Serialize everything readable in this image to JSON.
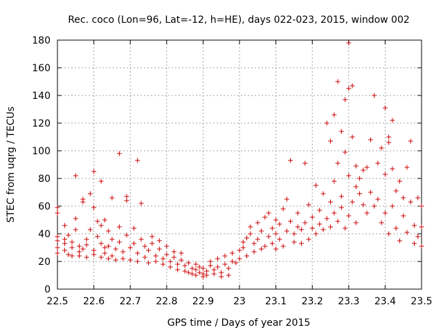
{
  "chart_data": {
    "type": "scatter",
    "title": "Rec. coco (Lon=96, Lat=-12, h=HE), days 022-023, 2015, window 002",
    "xlabel": "GPS time / Days of year 2015",
    "ylabel": "STEC from uqrg / TECUs",
    "xlim": [
      22.5,
      23.5
    ],
    "ylim": [
      0,
      180
    ],
    "x_ticks": [
      "22.5",
      "22.6",
      "22.7",
      "22.8",
      "22.9",
      "23",
      "23.1",
      "23.2",
      "23.3",
      "23.4",
      "23.5"
    ],
    "y_ticks": [
      "0",
      "20",
      "40",
      "60",
      "80",
      "100",
      "120",
      "140",
      "160",
      "180"
    ],
    "grid": true,
    "marker": "+",
    "colors": {
      "points": "#cc0000",
      "grid": "#a0a0a0",
      "axis": "#000000"
    },
    "series": [
      {
        "points": [
          [
            22.5,
            26
          ],
          [
            22.5,
            30
          ],
          [
            22.5,
            35
          ],
          [
            22.5,
            38
          ],
          [
            22.5,
            55
          ],
          [
            22.5,
            59
          ],
          [
            22.52,
            28
          ],
          [
            22.52,
            33
          ],
          [
            22.52,
            36
          ],
          [
            22.52,
            46
          ],
          [
            22.53,
            25
          ],
          [
            22.53,
            39
          ],
          [
            22.54,
            24
          ],
          [
            22.54,
            30
          ],
          [
            22.54,
            34
          ],
          [
            22.55,
            82
          ],
          [
            22.55,
            51
          ],
          [
            22.55,
            43
          ],
          [
            22.56,
            24
          ],
          [
            22.56,
            27
          ],
          [
            22.56,
            31
          ],
          [
            22.57,
            29
          ],
          [
            22.57,
            63
          ],
          [
            22.57,
            65
          ],
          [
            22.58,
            23
          ],
          [
            22.58,
            32
          ],
          [
            22.58,
            36
          ],
          [
            22.59,
            69
          ],
          [
            22.59,
            43
          ],
          [
            22.6,
            25
          ],
          [
            22.6,
            28
          ],
          [
            22.6,
            85
          ],
          [
            22.6,
            59
          ],
          [
            22.61,
            49
          ],
          [
            22.61,
            38
          ],
          [
            22.62,
            78
          ],
          [
            22.62,
            46
          ],
          [
            22.62,
            33
          ],
          [
            22.62,
            23
          ],
          [
            22.63,
            26
          ],
          [
            22.63,
            30
          ],
          [
            22.63,
            50
          ],
          [
            22.64,
            22
          ],
          [
            22.64,
            31
          ],
          [
            22.64,
            42
          ],
          [
            22.65,
            66
          ],
          [
            22.65,
            36
          ],
          [
            22.65,
            24
          ],
          [
            22.66,
            21
          ],
          [
            22.66,
            29
          ],
          [
            22.67,
            45
          ],
          [
            22.67,
            98
          ],
          [
            22.67,
            34
          ],
          [
            22.68,
            22
          ],
          [
            22.68,
            27
          ],
          [
            22.69,
            39
          ],
          [
            22.69,
            64
          ],
          [
            22.69,
            67
          ],
          [
            22.7,
            21
          ],
          [
            22.7,
            30
          ],
          [
            22.71,
            44
          ],
          [
            22.71,
            33
          ],
          [
            22.72,
            93
          ],
          [
            22.72,
            20
          ],
          [
            22.72,
            26
          ],
          [
            22.73,
            62
          ],
          [
            22.73,
            36
          ],
          [
            22.74,
            23
          ],
          [
            22.74,
            31
          ],
          [
            22.75,
            19
          ],
          [
            22.75,
            28
          ],
          [
            22.76,
            33
          ],
          [
            22.76,
            38
          ],
          [
            22.77,
            20
          ],
          [
            22.77,
            24
          ],
          [
            22.78,
            29
          ],
          [
            22.78,
            35
          ],
          [
            22.79,
            18
          ],
          [
            22.79,
            22
          ],
          [
            22.8,
            25
          ],
          [
            22.8,
            31
          ],
          [
            22.81,
            16
          ],
          [
            22.81,
            20
          ],
          [
            22.82,
            27
          ],
          [
            22.82,
            23
          ],
          [
            22.83,
            14
          ],
          [
            22.83,
            18
          ],
          [
            22.84,
            21
          ],
          [
            22.84,
            26
          ],
          [
            22.85,
            13
          ],
          [
            22.85,
            17
          ],
          [
            22.86,
            12
          ],
          [
            22.86,
            19
          ],
          [
            22.87,
            11
          ],
          [
            22.87,
            15
          ],
          [
            22.88,
            10
          ],
          [
            22.88,
            14
          ],
          [
            22.88,
            18
          ],
          [
            22.89,
            12
          ],
          [
            22.89,
            16
          ],
          [
            22.9,
            9
          ],
          [
            22.9,
            11
          ],
          [
            22.9,
            15
          ],
          [
            22.91,
            10
          ],
          [
            22.91,
            13
          ],
          [
            22.92,
            17
          ],
          [
            22.92,
            20
          ],
          [
            22.93,
            11
          ],
          [
            22.93,
            14
          ],
          [
            22.94,
            16
          ],
          [
            22.94,
            22
          ],
          [
            22.95,
            9
          ],
          [
            22.95,
            12
          ],
          [
            22.96,
            18
          ],
          [
            22.96,
            24
          ],
          [
            22.97,
            10
          ],
          [
            22.97,
            15
          ],
          [
            22.98,
            20
          ],
          [
            22.98,
            26
          ],
          [
            22.99,
            19
          ],
          [
            23.0,
            22
          ],
          [
            23.0,
            28
          ],
          [
            23.01,
            30
          ],
          [
            23.01,
            34
          ],
          [
            23.02,
            24
          ],
          [
            23.02,
            37
          ],
          [
            23.03,
            40
          ],
          [
            23.03,
            45
          ],
          [
            23.04,
            27
          ],
          [
            23.04,
            33
          ],
          [
            23.05,
            36
          ],
          [
            23.05,
            48
          ],
          [
            23.06,
            29
          ],
          [
            23.06,
            42
          ],
          [
            23.07,
            52
          ],
          [
            23.07,
            31
          ],
          [
            23.08,
            38
          ],
          [
            23.08,
            55
          ],
          [
            23.09,
            33
          ],
          [
            23.09,
            44
          ],
          [
            23.1,
            29
          ],
          [
            23.1,
            40
          ],
          [
            23.1,
            50
          ],
          [
            23.11,
            36
          ],
          [
            23.11,
            47
          ],
          [
            23.12,
            58
          ],
          [
            23.12,
            31
          ],
          [
            23.13,
            42
          ],
          [
            23.13,
            65
          ],
          [
            23.14,
            93
          ],
          [
            23.14,
            49
          ],
          [
            23.15,
            34
          ],
          [
            23.15,
            40
          ],
          [
            23.16,
            45
          ],
          [
            23.16,
            55
          ],
          [
            23.17,
            33
          ],
          [
            23.17,
            43
          ],
          [
            23.18,
            48
          ],
          [
            23.18,
            91
          ],
          [
            23.19,
            61
          ],
          [
            23.19,
            36
          ],
          [
            23.2,
            44
          ],
          [
            23.2,
            52
          ],
          [
            23.21,
            75
          ],
          [
            23.21,
            40
          ],
          [
            23.22,
            47
          ],
          [
            23.22,
            57
          ],
          [
            23.23,
            69
          ],
          [
            23.23,
            43
          ],
          [
            23.24,
            120
          ],
          [
            23.24,
            51
          ],
          [
            23.25,
            107
          ],
          [
            23.25,
            63
          ],
          [
            23.25,
            45
          ],
          [
            23.26,
            126
          ],
          [
            23.26,
            78
          ],
          [
            23.26,
            55
          ],
          [
            23.27,
            150
          ],
          [
            23.27,
            91
          ],
          [
            23.27,
            49
          ],
          [
            23.28,
            114
          ],
          [
            23.28,
            67
          ],
          [
            23.28,
            59
          ],
          [
            23.29,
            137
          ],
          [
            23.29,
            99
          ],
          [
            23.29,
            44
          ],
          [
            23.3,
            178
          ],
          [
            23.3,
            145
          ],
          [
            23.3,
            82
          ],
          [
            23.3,
            53
          ],
          [
            23.31,
            110
          ],
          [
            23.31,
            147
          ],
          [
            23.31,
            63
          ],
          [
            23.32,
            89
          ],
          [
            23.32,
            74
          ],
          [
            23.32,
            48
          ],
          [
            23.33,
            80
          ],
          [
            23.33,
            69
          ],
          [
            23.34,
            86
          ],
          [
            23.34,
            61
          ],
          [
            23.35,
            88
          ],
          [
            23.35,
            55
          ],
          [
            23.36,
            108
          ],
          [
            23.36,
            70
          ],
          [
            23.37,
            140
          ],
          [
            23.37,
            60
          ],
          [
            23.38,
            91
          ],
          [
            23.38,
            65
          ],
          [
            23.39,
            102
          ],
          [
            23.39,
            48
          ],
          [
            23.4,
            131
          ],
          [
            23.4,
            83
          ],
          [
            23.4,
            55
          ],
          [
            23.41,
            110
          ],
          [
            23.41,
            106
          ],
          [
            23.41,
            40
          ],
          [
            23.42,
            122
          ],
          [
            23.42,
            87
          ],
          [
            23.42,
            60
          ],
          [
            23.43,
            44
          ],
          [
            23.43,
            71
          ],
          [
            23.44,
            78
          ],
          [
            23.44,
            35
          ],
          [
            23.45,
            66
          ],
          [
            23.45,
            53
          ],
          [
            23.46,
            88
          ],
          [
            23.46,
            41
          ],
          [
            23.47,
            107
          ],
          [
            23.47,
            63
          ],
          [
            23.48,
            33
          ],
          [
            23.48,
            46
          ],
          [
            23.49,
            66
          ],
          [
            23.49,
            38
          ],
          [
            23.5,
            60
          ],
          [
            23.5,
            31
          ],
          [
            23.5,
            45
          ]
        ]
      }
    ]
  }
}
